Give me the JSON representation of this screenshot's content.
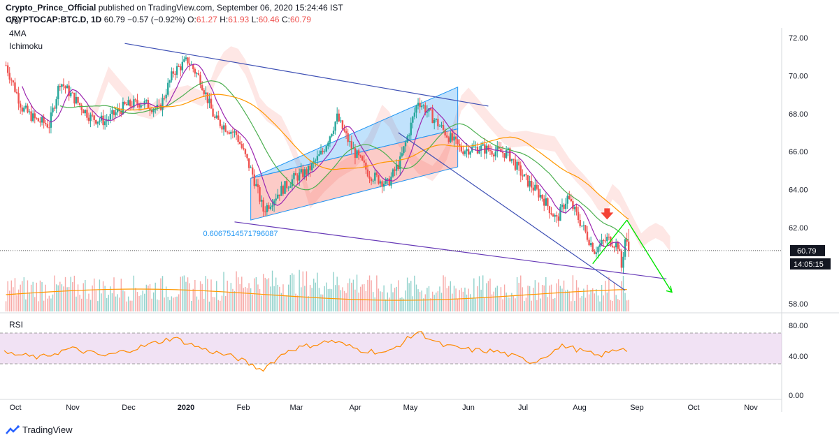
{
  "header": {
    "author": "Crypto_Prince_Official",
    "published_text": "published on TradingView.com, September 06, 2020 15:24:46 IST",
    "symbol": "CRYPTOCAP:BTC.D, 1D",
    "last": "60.79",
    "change": "−0.57 (−0.92%)",
    "o_label": "O:",
    "o": "61.27",
    "h_label": "H:",
    "h": "61.93",
    "l_label": "L:",
    "l": "60.46",
    "c_label": "C:",
    "c": "60.79"
  },
  "indicators": [
    "Vol",
    "4MA",
    "Ichimoku"
  ],
  "rsi_label": "RSI",
  "price_axis_labels": [
    "72.00",
    "70.00",
    "68.00",
    "66.00",
    "64.00",
    "62.00",
    "58.00"
  ],
  "price_badge": "60.79",
  "countdown_badge": "14:05:15",
  "rsi_axis_labels": [
    "80.00",
    "40.00",
    "0.00"
  ],
  "time_axis_labels": [
    "Oct",
    "Nov",
    "Dec",
    "2020",
    "Feb",
    "Mar",
    "Apr",
    "May",
    "Jun",
    "Jul",
    "Aug",
    "Sep",
    "Oct",
    "Nov"
  ],
  "fib_label": "0.6067514571796087",
  "footer_logo": "TradingView",
  "colors": {
    "up": "#26a69a",
    "down": "#ef5350",
    "channel_blue": "#2196f3",
    "channel_red": "#f44336",
    "trend_line": "#3f51b5",
    "projection": "#00e600",
    "rsi_band": "#e1bee7"
  },
  "chart_data": {
    "type": "candlestick",
    "symbol": "CRYPTOCAP:BTC.D",
    "interval": "1D",
    "ylim": [
      57.6,
      72.4
    ],
    "rsi_range": [
      0,
      100
    ],
    "rsi_levels": [
      70,
      30
    ],
    "x_range": [
      "2019-09-25",
      "2020-11-30"
    ],
    "last_close": 60.79,
    "ohlc_last": {
      "open": 61.27,
      "high": 61.93,
      "low": 60.46,
      "close": 60.79
    },
    "price_path": [
      [
        "2019-09-25",
        70.8
      ],
      [
        "2019-10-05",
        68.3
      ],
      [
        "2019-10-12",
        67.7
      ],
      [
        "2019-10-20",
        67.4
      ],
      [
        "2019-10-26",
        69.7
      ],
      [
        "2019-11-02",
        68.9
      ],
      [
        "2019-11-12",
        67.8
      ],
      [
        "2019-11-20",
        67.6
      ],
      [
        "2019-12-01",
        68.4
      ],
      [
        "2019-12-10",
        68.6
      ],
      [
        "2019-12-20",
        68.2
      ],
      [
        "2019-12-28",
        70.2
      ],
      [
        "2020-01-05",
        70.8
      ],
      [
        "2020-01-12",
        69.8
      ],
      [
        "2020-01-20",
        67.7
      ],
      [
        "2020-02-01",
        66.9
      ],
      [
        "2020-02-10",
        64.8
      ],
      [
        "2020-02-16",
        62.9
      ],
      [
        "2020-02-24",
        63.8
      ],
      [
        "2020-03-04",
        64.6
      ],
      [
        "2020-03-12",
        65.0
      ],
      [
        "2020-03-20",
        66.0
      ],
      [
        "2020-03-28",
        67.8
      ],
      [
        "2020-04-05",
        66.2
      ],
      [
        "2020-04-15",
        64.8
      ],
      [
        "2020-04-25",
        64.3
      ],
      [
        "2020-05-02",
        65.5
      ],
      [
        "2020-05-08",
        67.4
      ],
      [
        "2020-05-12",
        68.7
      ],
      [
        "2020-05-20",
        67.8
      ],
      [
        "2020-05-28",
        66.9
      ],
      [
        "2020-06-05",
        66.1
      ],
      [
        "2020-06-15",
        66.2
      ],
      [
        "2020-06-25",
        66.0
      ],
      [
        "2020-07-01",
        65.9
      ],
      [
        "2020-07-10",
        64.6
      ],
      [
        "2020-07-20",
        63.6
      ],
      [
        "2020-07-28",
        62.4
      ],
      [
        "2020-08-03",
        63.6
      ],
      [
        "2020-08-10",
        62.3
      ],
      [
        "2020-08-18",
        60.8
      ],
      [
        "2020-08-25",
        61.4
      ],
      [
        "2020-08-31",
        61.1
      ],
      [
        "2020-09-02",
        59.9
      ],
      [
        "2020-09-04",
        61.4
      ],
      [
        "2020-09-06",
        60.79
      ]
    ],
    "rsi_path": [
      [
        "2019-09-25",
        44
      ],
      [
        "2019-10-15",
        38
      ],
      [
        "2019-11-01",
        50
      ],
      [
        "2019-11-20",
        40
      ],
      [
        "2019-12-10",
        52
      ],
      [
        "2019-12-28",
        64
      ],
      [
        "2020-01-15",
        48
      ],
      [
        "2020-02-01",
        38
      ],
      [
        "2020-02-15",
        22
      ],
      [
        "2020-03-01",
        48
      ],
      [
        "2020-03-25",
        60
      ],
      [
        "2020-04-10",
        48
      ],
      [
        "2020-04-25",
        44
      ],
      [
        "2020-05-12",
        72
      ],
      [
        "2020-05-25",
        54
      ],
      [
        "2020-06-10",
        48
      ],
      [
        "2020-06-25",
        46
      ],
      [
        "2020-07-15",
        32
      ],
      [
        "2020-08-01",
        54
      ],
      [
        "2020-08-20",
        40
      ],
      [
        "2020-09-04",
        52
      ],
      [
        "2020-09-06",
        46
      ]
    ],
    "drawings": {
      "upper_trendline": [
        [
          "2019-12-01",
          71.7
        ],
        [
          "2020-06-20",
          68.4
        ]
      ],
      "lower_trendline": [
        [
          "2020-01-31",
          62.3
        ],
        [
          "2020-09-27",
          59.3
        ]
      ],
      "descending_channel_lower": [
        [
          "2020-05-01",
          67.0
        ],
        [
          "2020-09-04",
          58.7
        ]
      ],
      "rising_channel_blue": [
        [
          "2020-02-09",
          64.6
        ],
        [
          "2020-06-03",
          69.4
        ]
      ],
      "rising_channel_mid": [
        [
          "2020-02-09",
          64.6
        ],
        [
          "2020-06-03",
          67.2
        ]
      ],
      "rising_channel_red_lower": [
        [
          "2020-02-09",
          62.4
        ],
        [
          "2020-06-03",
          65.2
        ]
      ],
      "projection_up": [
        [
          "2020-08-17",
          60.1
        ],
        [
          "2020-09-05",
          62.4
        ]
      ],
      "projection_down": [
        [
          "2020-09-05",
          62.4
        ],
        [
          "2020-09-30",
          58.6
        ]
      ],
      "arrow_marker": [
        "2020-08-25",
        62.5
      ],
      "fib_label_anchor": [
        "2020-01-31",
        62.0
      ]
    }
  }
}
